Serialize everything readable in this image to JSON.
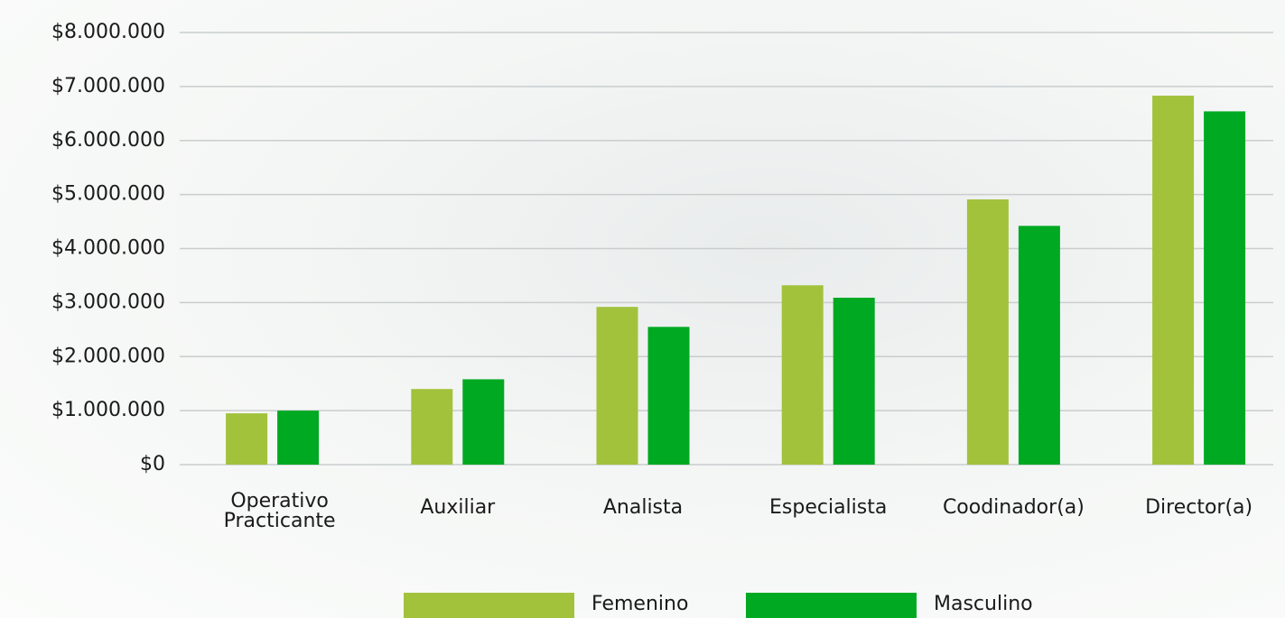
{
  "chart_data": {
    "type": "bar",
    "categories": [
      "Operativo Practicante",
      "Auxiliar",
      "Analista",
      "Especialista",
      "Coodinador(a)",
      "Director(a)"
    ],
    "series": [
      {
        "name": "Femenino",
        "color": "#a2c23c",
        "values": [
          950000,
          1400000,
          2920000,
          3320000,
          4910000,
          6830000
        ]
      },
      {
        "name": "Masculino",
        "color": "#00a922",
        "values": [
          1000000,
          1580000,
          2550000,
          3090000,
          4420000,
          6540000
        ]
      }
    ],
    "ylim": [
      0,
      8000000
    ],
    "yticks": [
      {
        "value": 0,
        "label": "$0"
      },
      {
        "value": 1000000,
        "label": "$1.000.000"
      },
      {
        "value": 2000000,
        "label": "$2.000.000"
      },
      {
        "value": 3000000,
        "label": "$3.000.000"
      },
      {
        "value": 4000000,
        "label": "$4.000.000"
      },
      {
        "value": 5000000,
        "label": "$5.000.000"
      },
      {
        "value": 6000000,
        "label": "$6.000.000"
      },
      {
        "value": 7000000,
        "label": "$7.000.000"
      },
      {
        "value": 8000000,
        "label": "$8.000.000"
      }
    ],
    "grid": true,
    "legend": "bottom"
  }
}
